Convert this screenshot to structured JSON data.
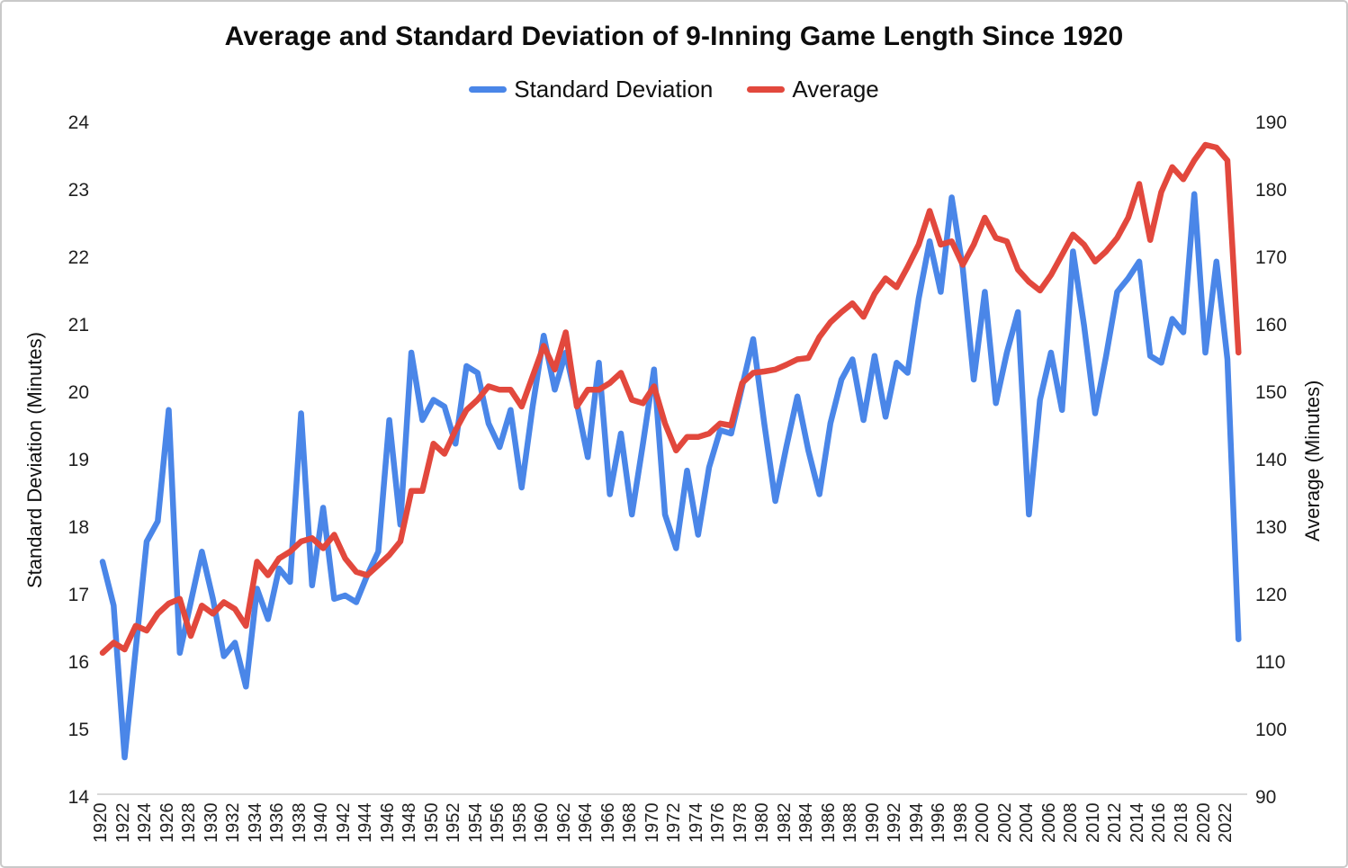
{
  "title": "Average and Standard Deviation of 9-Inning Game Length Since 1920",
  "legend": {
    "items": [
      {
        "label": "Standard Deviation",
        "color": "#4a86e8"
      },
      {
        "label": "Average",
        "color": "#e2483d"
      }
    ]
  },
  "left_axis": {
    "title": "Standard Deviation (Minutes)",
    "min": 14,
    "max": 24,
    "step": 1
  },
  "right_axis": {
    "title": "Average (Minutes)",
    "min": 90,
    "max": 190,
    "step": 10
  },
  "x_axis": {
    "first_label": 1920,
    "last_label": 2022,
    "label_step": 2
  },
  "colors": {
    "std_dev_line": "#4a86e8",
    "average_line": "#e2483d",
    "axis_line": "#d9d9d9"
  },
  "chart_data": {
    "type": "line",
    "title": "Average and Standard Deviation of 9-Inning Game Length Since 1920",
    "legend_position": "top",
    "grid": false,
    "x_range": [
      1920,
      2023
    ],
    "left_ylim": [
      14,
      24
    ],
    "right_ylim": [
      90,
      190
    ],
    "x": [
      1920,
      1921,
      1922,
      1923,
      1924,
      1925,
      1926,
      1927,
      1928,
      1929,
      1930,
      1931,
      1932,
      1933,
      1934,
      1935,
      1936,
      1937,
      1938,
      1939,
      1940,
      1941,
      1942,
      1943,
      1944,
      1945,
      1946,
      1947,
      1948,
      1949,
      1950,
      1951,
      1952,
      1953,
      1954,
      1955,
      1956,
      1957,
      1958,
      1959,
      1960,
      1961,
      1962,
      1963,
      1964,
      1965,
      1966,
      1967,
      1968,
      1969,
      1970,
      1971,
      1972,
      1973,
      1974,
      1975,
      1976,
      1977,
      1978,
      1979,
      1980,
      1981,
      1982,
      1983,
      1984,
      1985,
      1986,
      1987,
      1988,
      1989,
      1990,
      1991,
      1992,
      1993,
      1994,
      1995,
      1996,
      1997,
      1998,
      1999,
      2000,
      2001,
      2002,
      2003,
      2004,
      2005,
      2006,
      2007,
      2008,
      2009,
      2010,
      2011,
      2012,
      2013,
      2014,
      2015,
      2016,
      2017,
      2018,
      2019,
      2020,
      2021,
      2022,
      2023
    ],
    "series": [
      {
        "name": "Standard Deviation",
        "axis": "left",
        "ylabel": "Standard Deviation (Minutes)",
        "color": "#4a86e8",
        "values": [
          17.5,
          16.85,
          14.6,
          16.2,
          17.8,
          18.1,
          19.75,
          16.15,
          16.9,
          17.65,
          16.95,
          16.1,
          16.3,
          15.65,
          17.1,
          16.65,
          17.4,
          17.2,
          19.7,
          17.15,
          18.3,
          16.95,
          17.0,
          16.9,
          17.3,
          17.65,
          19.6,
          18.05,
          20.6,
          19.6,
          19.9,
          19.8,
          19.25,
          20.4,
          20.3,
          19.55,
          19.2,
          19.75,
          18.6,
          19.8,
          20.85,
          20.05,
          20.6,
          19.85,
          19.05,
          20.45,
          18.5,
          19.4,
          18.2,
          19.25,
          20.35,
          18.2,
          17.7,
          18.85,
          17.9,
          18.9,
          19.45,
          19.4,
          20.1,
          20.8,
          19.55,
          18.4,
          19.2,
          19.95,
          19.15,
          18.5,
          19.55,
          20.2,
          20.5,
          19.6,
          20.55,
          19.65,
          20.45,
          20.3,
          21.4,
          22.25,
          21.5,
          22.9,
          21.85,
          20.2,
          21.5,
          19.85,
          20.6,
          21.2,
          18.2,
          19.9,
          20.6,
          19.75,
          22.1,
          21.0,
          19.7,
          20.55,
          21.5,
          21.7,
          21.95,
          20.55,
          20.45,
          21.1,
          20.9,
          22.95,
          20.6,
          21.95,
          20.5,
          16.35
        ]
      },
      {
        "name": "Average",
        "axis": "right",
        "ylabel": "Average (Minutes)",
        "color": "#e2483d",
        "values": [
          111.5,
          113,
          112,
          115.5,
          114.8,
          117.3,
          118.8,
          119.5,
          114,
          118.5,
          117.3,
          119,
          118,
          115.5,
          125,
          123,
          125.5,
          126.5,
          128,
          128.5,
          127,
          129,
          125.5,
          123.5,
          123,
          124.5,
          126,
          128,
          135.5,
          135.5,
          142.5,
          141,
          144.5,
          147.5,
          149,
          151,
          150.5,
          150.5,
          148,
          152.5,
          157,
          153.5,
          159,
          148,
          150.5,
          150.5,
          151.5,
          153,
          149,
          148.5,
          151,
          145.5,
          141.5,
          143.5,
          143.5,
          144,
          145.5,
          145.2,
          151.5,
          153,
          153.2,
          153.5,
          154.2,
          155,
          155.2,
          158.3,
          160.5,
          162,
          163.3,
          161.3,
          164.7,
          167,
          165.7,
          168.7,
          172,
          177,
          172,
          172.5,
          169,
          172,
          176,
          173,
          172.5,
          168.3,
          166.5,
          165.2,
          167.5,
          170.5,
          173.5,
          172,
          169.5,
          171,
          173,
          176,
          181,
          172.7,
          179.8,
          183.5,
          181.7,
          184.5,
          186.8,
          186.4,
          184.5,
          156
        ]
      }
    ]
  }
}
